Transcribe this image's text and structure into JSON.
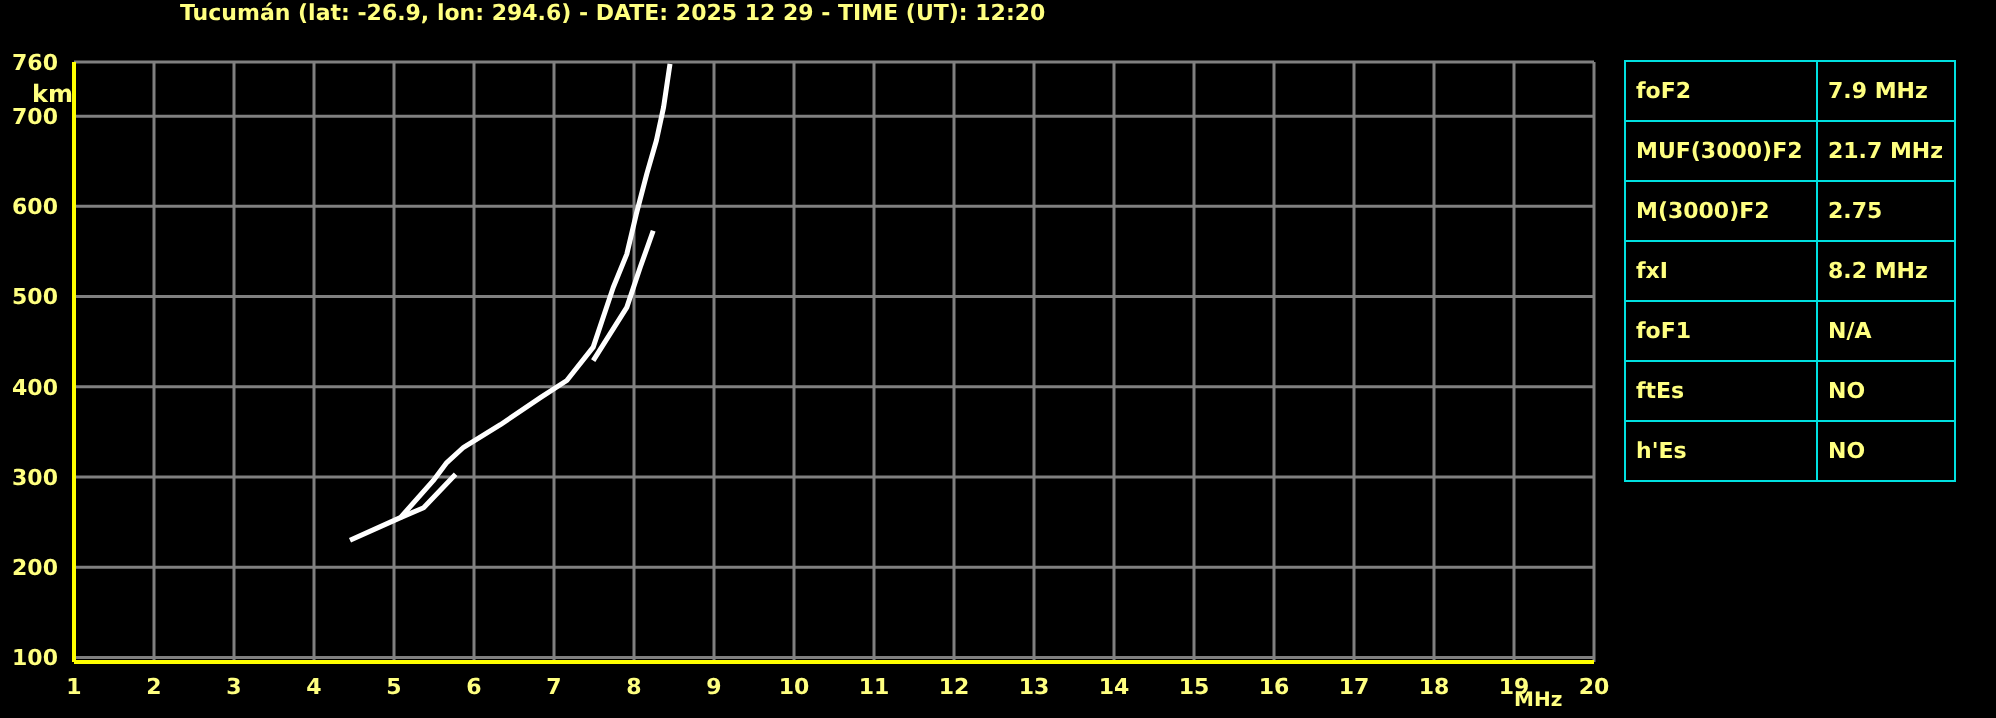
{
  "chart_data": {
    "type": "line",
    "title": "Tucumán (lat: -26.9, lon: 294.6) - DATE: 2025 12 29 - TIME (UT): 12:20",
    "xlabel": "MHz",
    "ylabel": "km",
    "series": [
      {
        "color": "#ffffff",
        "x": [
          4.45,
          5.08,
          5.49,
          5.66,
          5.87,
          6.33,
          6.83,
          7.16,
          7.49,
          7.74,
          7.91,
          8.03,
          8.16,
          8.28,
          8.37,
          8.45
        ],
        "values": [
          230,
          255,
          296,
          316,
          333,
          358,
          388,
          407,
          444,
          510,
          547,
          592,
          636,
          673,
          710,
          758
        ]
      },
      {
        "color": "#ffffff",
        "x": [
          5.08,
          5.37,
          5.77,
          6.5,
          7.49,
          7.91,
          8.08,
          8.24
        ],
        "values": [
          255,
          266,
          303,
          null,
          429,
          488,
          533,
          573
        ]
      }
    ],
    "xlim": [
      1,
      20
    ],
    "xticks": [
      1,
      2,
      3,
      4,
      5,
      6,
      7,
      8,
      9,
      10,
      11,
      12,
      13,
      14,
      15,
      16,
      17,
      18,
      19,
      20
    ],
    "ylim": [
      95,
      760
    ],
    "yticks": [
      100,
      200,
      300,
      400,
      500,
      600,
      700,
      760
    ],
    "grid": true,
    "marker": "none",
    "annotations": [
      "foF2",
      "7.9 MHz",
      "MUF(3000)F2",
      "21.7 MHz",
      "M(3000)F2",
      "2.75",
      "fxI",
      "8.2 MHz",
      "foF1",
      "N/A",
      "ftEs",
      "NO",
      "h'Es",
      "NO"
    ]
  }
}
